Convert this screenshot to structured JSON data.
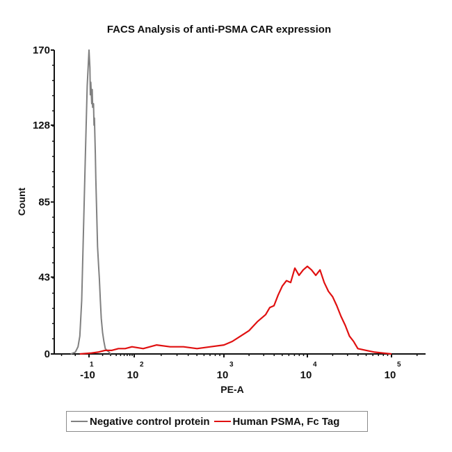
{
  "chart_data": {
    "type": "line",
    "title": "FACS Analysis of anti-PSMA CAR expression",
    "xlabel": "PE-A",
    "ylabel": "Count",
    "ylim": [
      0,
      170
    ],
    "yticks": [
      0,
      43,
      85,
      128,
      170
    ],
    "ytick_labels": [
      "0",
      "43",
      "85",
      "128",
      "170"
    ],
    "xscale": "biexponential",
    "xlim": [
      0.62,
      5.4
    ],
    "xticks": [
      {
        "pos": 1,
        "base": "-10",
        "exp": "1"
      },
      {
        "pos": 2,
        "base": "10",
        "exp": "2"
      },
      {
        "pos": 3,
        "base": "10",
        "exp": "3"
      },
      {
        "pos": 4,
        "base": "10",
        "exp": "4"
      },
      {
        "pos": 5,
        "base": "10",
        "exp": "5"
      }
    ],
    "grid": false,
    "legend_position": "bottom",
    "series": [
      {
        "name": "Negative control protein",
        "color": "#808080",
        "x": [
          0.8,
          0.85,
          0.88,
          0.9,
          0.92,
          0.94,
          0.96,
          0.98,
          1.0,
          1.02,
          1.03,
          1.04,
          1.06,
          1.07,
          1.08,
          1.1,
          1.11,
          1.12,
          1.14,
          1.15,
          1.17,
          1.19,
          1.21,
          1.23,
          1.25,
          1.27,
          1.3,
          1.33,
          1.36,
          1.4,
          1.44,
          1.48
        ],
        "y": [
          0,
          1,
          4,
          10,
          30,
          70,
          110,
          150,
          170,
          160,
          145,
          152,
          140,
          148,
          138,
          140,
          128,
          132,
          112,
          98,
          80,
          60,
          50,
          42,
          30,
          20,
          12,
          7,
          3,
          2,
          1,
          0
        ]
      },
      {
        "name": "Human PSMA, Fc Tag",
        "color": "#e01010",
        "x": [
          0.9,
          1.05,
          1.2,
          1.35,
          1.5,
          1.65,
          1.8,
          1.95,
          2.1,
          2.25,
          2.4,
          2.55,
          2.7,
          2.85,
          3.0,
          3.1,
          3.2,
          3.3,
          3.4,
          3.5,
          3.55,
          3.6,
          3.65,
          3.7,
          3.75,
          3.8,
          3.85,
          3.9,
          3.95,
          4.0,
          4.05,
          4.1,
          4.15,
          4.2,
          4.25,
          4.3,
          4.35,
          4.4,
          4.45,
          4.5,
          4.55,
          4.6,
          4.7,
          4.8,
          4.9,
          5.0
        ],
        "y": [
          0,
          0.5,
          1,
          2,
          2,
          3,
          3,
          4,
          3,
          5,
          4,
          4,
          3,
          4,
          5,
          7,
          10,
          13,
          18,
          22,
          26,
          27,
          33,
          38,
          41,
          40,
          48,
          44,
          47,
          49,
          47,
          44,
          47,
          40,
          35,
          32,
          27,
          21,
          16,
          10,
          7,
          3,
          2,
          1,
          0.5,
          0
        ]
      }
    ]
  },
  "legend": {
    "items": [
      {
        "label": "Negative control protein",
        "color": "#808080"
      },
      {
        "label": "Human PSMA, Fc Tag",
        "color": "#e01010"
      }
    ]
  }
}
